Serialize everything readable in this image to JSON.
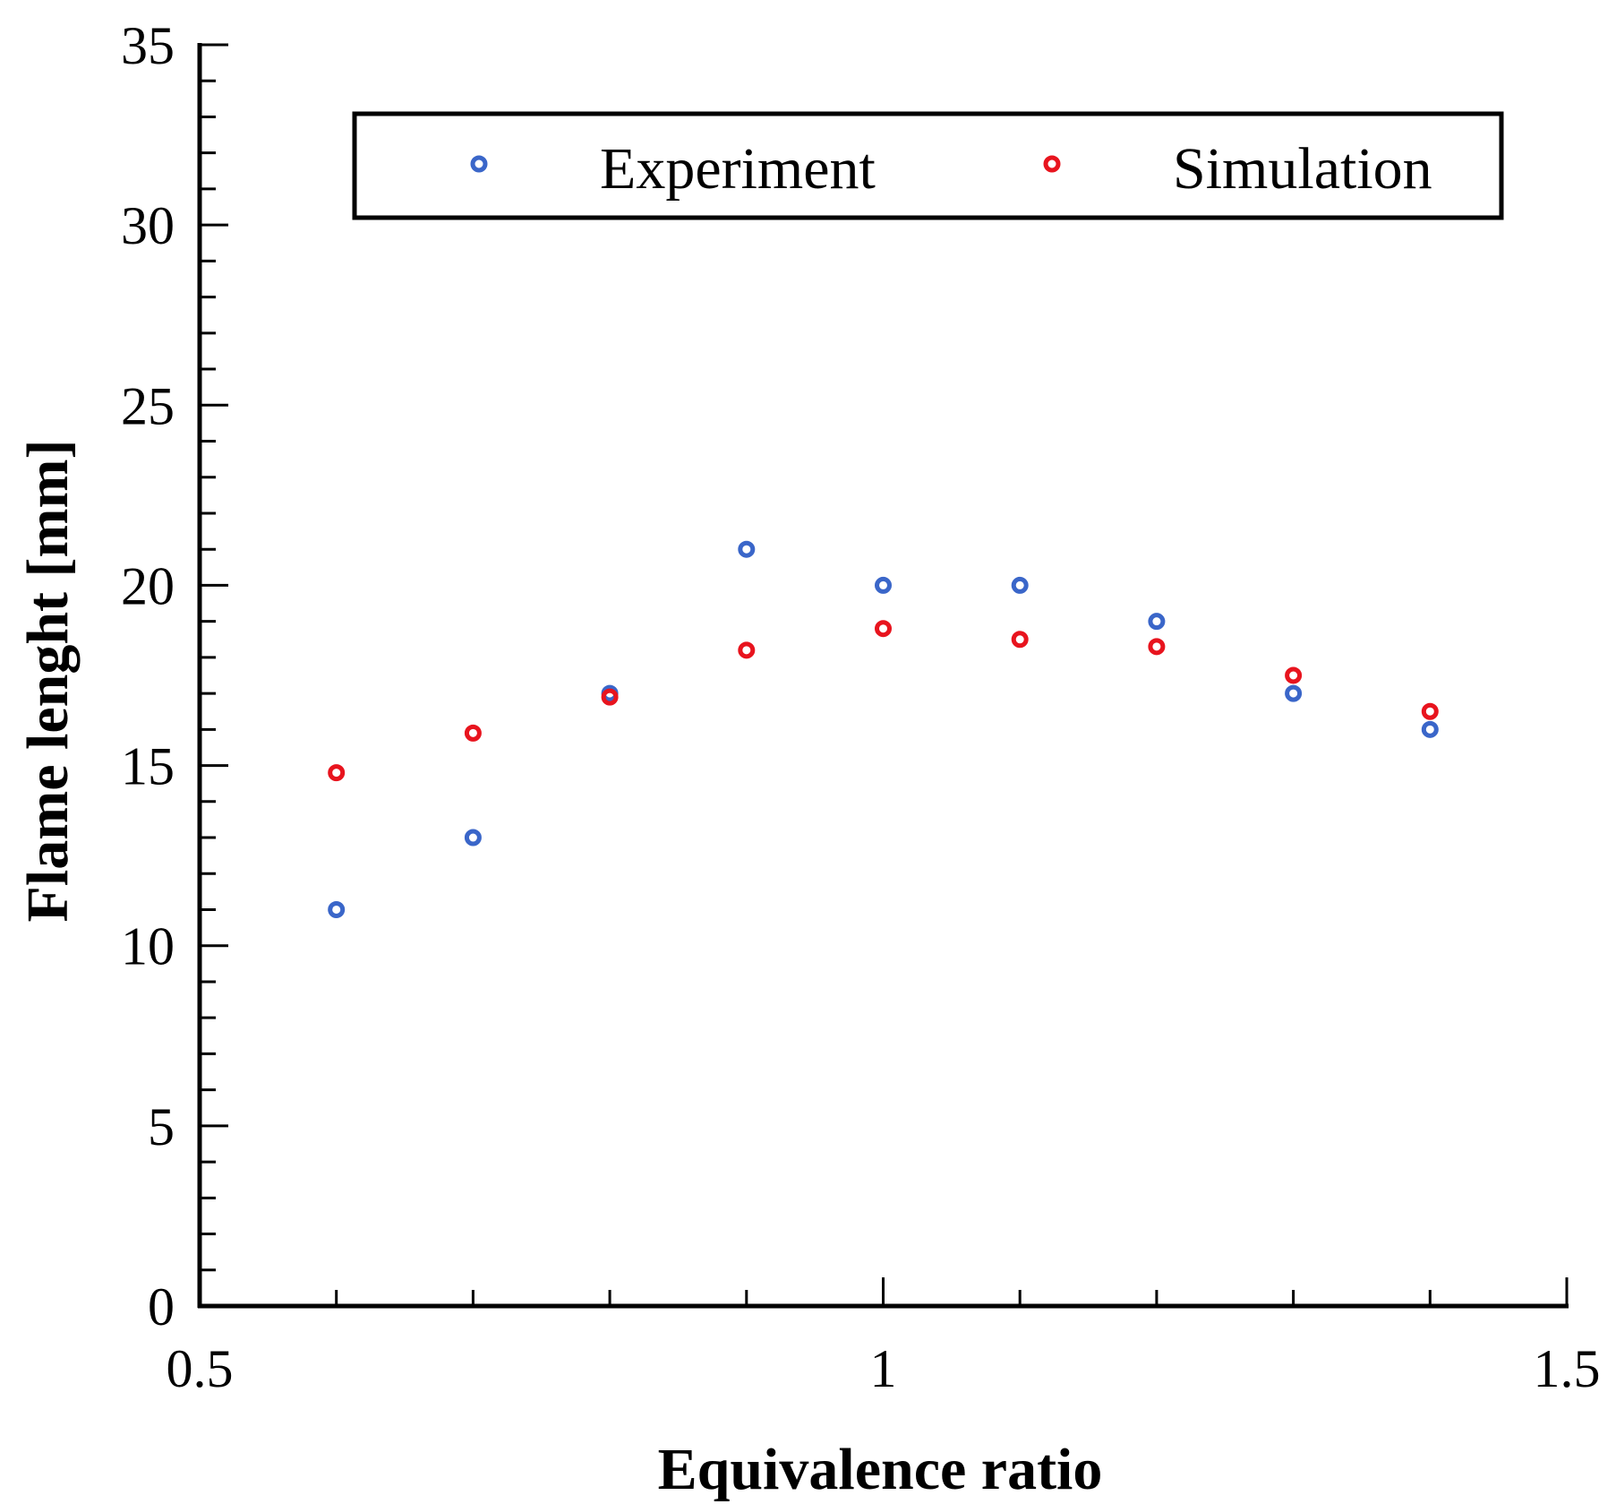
{
  "chart_data": {
    "type": "scatter",
    "title": "",
    "xlabel": "Equivalence ratio",
    "ylabel": "Flame lenght [mm]",
    "xlim": [
      0.5,
      1.5
    ],
    "ylim": [
      0,
      35
    ],
    "xticks": [
      0.5,
      1,
      1.5
    ],
    "xtick_labels": [
      "0.5",
      "1",
      "1.5"
    ],
    "x_minor_ticks": [
      0.6,
      0.7,
      0.8,
      0.9,
      1.1,
      1.2,
      1.3,
      1.4
    ],
    "yticks": [
      0,
      5,
      10,
      15,
      20,
      25,
      30,
      35
    ],
    "ytick_labels": [
      "0",
      "5",
      "10",
      "15",
      "20",
      "25",
      "30",
      "35"
    ],
    "y_minor_step": 1,
    "grid": false,
    "legend_position": "top-right",
    "series": [
      {
        "name": "Experiment",
        "color": "#3a66c9",
        "marker": "open-circle",
        "x": [
          0.6,
          0.7,
          0.8,
          0.9,
          1.0,
          1.1,
          1.2,
          1.3,
          1.4
        ],
        "y": [
          11,
          13,
          17,
          21,
          20,
          20,
          19,
          17,
          16
        ]
      },
      {
        "name": "Simulation",
        "color": "#e8141e",
        "marker": "open-circle",
        "x": [
          0.6,
          0.7,
          0.8,
          0.9,
          1.0,
          1.1,
          1.2,
          1.3,
          1.4
        ],
        "y": [
          14.8,
          15.9,
          16.9,
          18.2,
          18.8,
          18.5,
          18.3,
          17.5,
          16.5
        ]
      }
    ]
  }
}
